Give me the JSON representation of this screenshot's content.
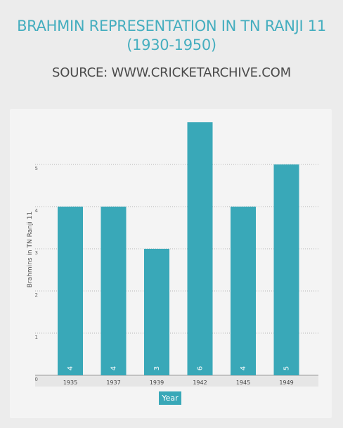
{
  "title": "BRAHMIN REPRESENTATION IN TN RANJI 11 (1930-1950)",
  "subtitle": "SOURCE: WWW.CRICKETARCHIVE.COM",
  "chart_data": {
    "type": "bar",
    "categories": [
      "1935",
      "1937",
      "1939",
      "1942",
      "1945",
      "1949"
    ],
    "values": [
      4,
      4,
      3,
      6,
      4,
      5
    ],
    "data_labels": [
      "4",
      "4",
      "3",
      "6",
      "4",
      "5"
    ],
    "title": "BRAHMIN REPRESENTATION IN TN RANJI 11 (1930-1950)",
    "xlabel": "Year",
    "ylabel": "Brahmins in TN Ranji 11",
    "ylim": [
      0,
      6
    ],
    "yticks": [
      "0",
      "1",
      "2",
      "3",
      "4",
      "5"
    ],
    "grid": true,
    "bar_color": "#39a8b8"
  }
}
